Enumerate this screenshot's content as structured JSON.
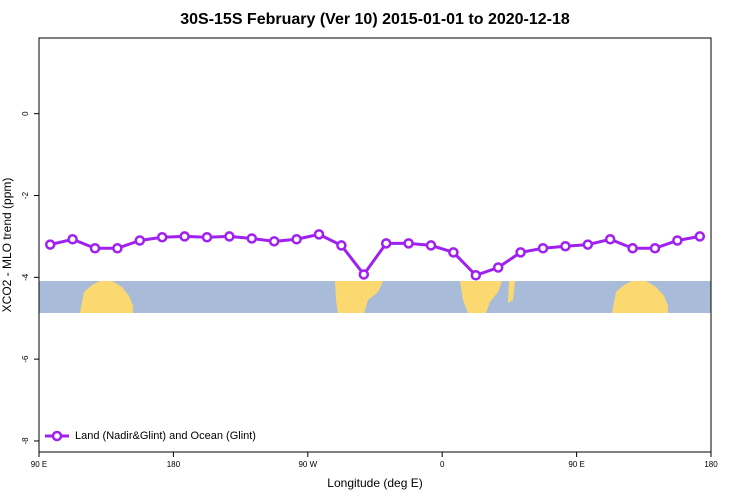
{
  "chart_data": {
    "type": "line",
    "title": "30S-15S February (Ver 10)   2015-01-01 to 2020-12-18",
    "x_label": "Longitude (deg E)",
    "y_label": "XCO2 - MLO trend (ppm)",
    "x": [
      97.5,
      112.5,
      127.5,
      142.5,
      157.5,
      172.5,
      187.5,
      202.5,
      217.5,
      232.5,
      247.5,
      262.5,
      277.5,
      292.5,
      307.5,
      322.5,
      337.5,
      352.5,
      367.5,
      382.5,
      397.5,
      412.5,
      427.5,
      442.5,
      457.5,
      472.5,
      487.5,
      502.5,
      517.5,
      532.5
    ],
    "series": [
      {
        "name": "Land (Nadir&Glint) and Ocean (Glint)",
        "color": "#a020f0",
        "values": [
          -3.2,
          -3.07,
          -3.29,
          -3.29,
          -3.1,
          -3.02,
          -3.0,
          -3.02,
          -3.0,
          -3.05,
          -3.12,
          -3.07,
          -2.95,
          -3.22,
          -3.93,
          -3.17,
          -3.17,
          -3.22,
          -3.39,
          -3.95,
          -3.76,
          -3.39,
          -3.29,
          -3.24,
          -3.2,
          -3.07,
          -3.29,
          -3.29,
          -3.1,
          -3.0
        ]
      }
    ],
    "xlim": [
      90,
      540
    ],
    "xticks": [
      {
        "value": 90,
        "label": "90 E"
      },
      180,
      {
        "value": 270,
        "label": "90 W"
      },
      {
        "value": 360,
        "label": "0"
      },
      {
        "value": 450,
        "label": "90 E"
      },
      {
        "value": 540,
        "label": "180"
      }
    ],
    "ylim": [
      -8.27,
      1.85
    ],
    "yticks": [
      0,
      -2,
      -4,
      -6,
      -8
    ],
    "legend": "bottom-left"
  }
}
